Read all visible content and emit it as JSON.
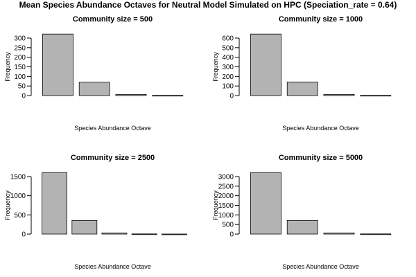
{
  "page_title": "Mean Species Abundance Octaves for Neutral Model Simulated on HPC (Speciation_rate = 0.64)",
  "chart_data": [
    {
      "type": "bar",
      "title": "Community size = 500",
      "xlabel": "Species Abundance Octave",
      "ylabel": "Frequency",
      "values": [
        321,
        70,
        6,
        1
      ],
      "ylim": [
        0,
        300
      ],
      "yticks": [
        0,
        50,
        100,
        150,
        200,
        250,
        300
      ],
      "bar_color": "#b3b3b3"
    },
    {
      "type": "bar",
      "title": "Community size = 1000",
      "xlabel": "Species Abundance Octave",
      "ylabel": "Frequency",
      "values": [
        642,
        142,
        12,
        2
      ],
      "ylim": [
        0,
        600
      ],
      "yticks": [
        0,
        100,
        200,
        300,
        400,
        500,
        600
      ],
      "bar_color": "#b3b3b3"
    },
    {
      "type": "bar",
      "title": "Community size = 2500",
      "xlabel": "Species Abundance Octave",
      "ylabel": "Frequency",
      "values": [
        1605,
        355,
        30,
        4,
        1
      ],
      "ylim": [
        0,
        1500
      ],
      "yticks": [
        0,
        500,
        1000,
        1500
      ],
      "bar_color": "#b3b3b3"
    },
    {
      "type": "bar",
      "title": "Community size = 5000",
      "xlabel": "Species Abundance Octave",
      "ylabel": "Frequency",
      "values": [
        3210,
        710,
        60,
        8
      ],
      "ylim": [
        0,
        3000
      ],
      "yticks": [
        0,
        500,
        1000,
        1500,
        2000,
        2500,
        3000
      ],
      "bar_color": "#b3b3b3"
    }
  ]
}
